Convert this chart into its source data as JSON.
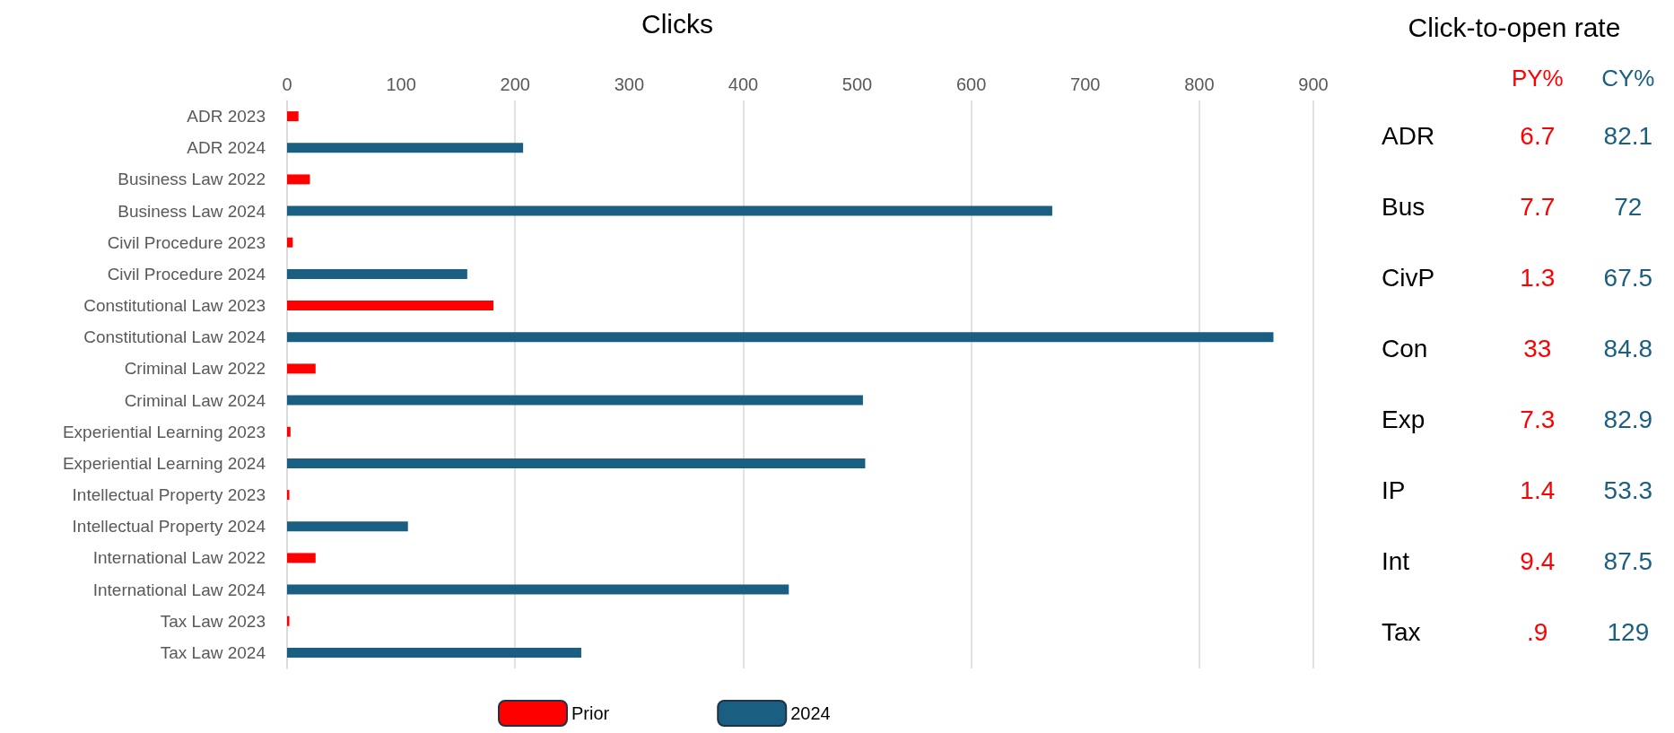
{
  "chart_data": [
    {
      "type": "bar",
      "orientation": "horizontal",
      "title": "Clicks",
      "categories": [
        "ADR 2023",
        "ADR 2024",
        "Business Law 2022",
        "Business Law 2024",
        "Civil Procedure 2023",
        "Civil Procedure 2024",
        "Constitutional Law 2023",
        "Constitutional Law 2024",
        "Criminal Law 2022",
        "Criminal Law 2024",
        "Experiential Learning 2023",
        "Experiential Learning 2024",
        "Intellectual Property 2023",
        "Intellectual Property 2024",
        "International Law 2022",
        "International Law 2024",
        "Tax Law 2023",
        "Tax Law 2024"
      ],
      "series": [
        {
          "name": "Prior",
          "color": "#ff0000",
          "values": [
            10,
            null,
            20,
            null,
            5,
            null,
            181,
            null,
            25,
            null,
            3,
            null,
            2,
            null,
            25,
            null,
            2,
            null
          ]
        },
        {
          "name": "2024",
          "color": "#1a5e82",
          "values": [
            null,
            207,
            null,
            671,
            null,
            158,
            null,
            865,
            null,
            505,
            null,
            507,
            null,
            106,
            null,
            440,
            null,
            258
          ]
        }
      ],
      "xlim": [
        0,
        900
      ],
      "xticks": [
        0,
        100,
        200,
        300,
        400,
        500,
        600,
        700,
        800,
        900
      ],
      "grid": "x",
      "legend": "bottom"
    },
    {
      "type": "other",
      "title": "Click-to-open rate",
      "categories": [
        "ADR",
        "Bus",
        "CivP",
        "Con",
        "Exp",
        "IP",
        "Int",
        "Tax"
      ],
      "series": [
        {
          "name": "PY%",
          "color": "#ff0000",
          "values": [
            6.7,
            7.7,
            1.3,
            33,
            7.3,
            1.4,
            9.4,
            0.9
          ],
          "value_labels": [
            "6.7",
            "7.7",
            "1.3",
            "33",
            "7.3",
            "1.4",
            "9.4",
            ".9"
          ]
        },
        {
          "name": "CY%",
          "color": "#1a5e82",
          "values": [
            82.1,
            72,
            67.5,
            84.8,
            82.9,
            53.3,
            87.5,
            129
          ],
          "value_labels": [
            "82.1",
            "72",
            "67.5",
            "84.8",
            "82.9",
            "53.3",
            "87.5",
            "129"
          ]
        }
      ]
    }
  ]
}
